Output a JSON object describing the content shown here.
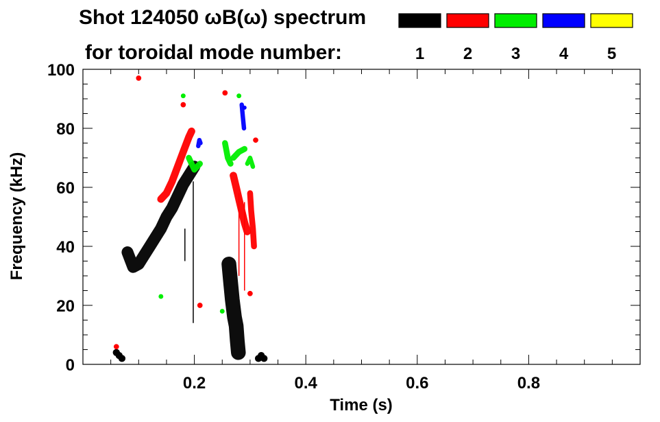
{
  "chart_data": {
    "type": "heatmap",
    "title_line1": "Shot 124050 ωB(ω) spectrum",
    "title_line2": "for toroidal mode number:",
    "xlabel": "Time (s)",
    "ylabel": "Frequency (kHz)",
    "xlim": [
      0,
      1.0
    ],
    "ylim": [
      0,
      100
    ],
    "x_ticks": [
      {
        "value": 0.2,
        "label": "0.2"
      },
      {
        "value": 0.4,
        "label": "0.4"
      },
      {
        "value": 0.6,
        "label": "0.6"
      },
      {
        "value": 0.8,
        "label": "0.8"
      }
    ],
    "y_ticks": [
      {
        "value": 0,
        "label": "0"
      },
      {
        "value": 20,
        "label": "20"
      },
      {
        "value": 40,
        "label": "40"
      },
      {
        "value": 60,
        "label": "60"
      },
      {
        "value": 80,
        "label": "80"
      },
      {
        "value": 100,
        "label": "100"
      }
    ],
    "legend_placement": "top-right",
    "modes": [
      {
        "label": "1",
        "color": "#000000"
      },
      {
        "label": "2",
        "color": "#ff0000"
      },
      {
        "label": "3",
        "color": "#00ee00"
      },
      {
        "label": "4",
        "color": "#0000ff"
      },
      {
        "label": "5",
        "color": "#ffff00"
      }
    ],
    "features": [
      {
        "mode": "1",
        "points": [
          [
            0.08,
            38
          ],
          [
            0.09,
            33
          ],
          [
            0.1,
            34
          ],
          [
            0.11,
            37
          ],
          [
            0.12,
            40
          ],
          [
            0.13,
            43
          ],
          [
            0.14,
            46
          ],
          [
            0.15,
            50
          ],
          [
            0.16,
            53
          ],
          [
            0.17,
            57
          ],
          [
            0.18,
            61
          ],
          [
            0.19,
            64
          ],
          [
            0.2,
            67
          ]
        ],
        "width_khz": 4
      },
      {
        "mode": "1",
        "points": [
          [
            0.262,
            34
          ],
          [
            0.265,
            28
          ],
          [
            0.268,
            22
          ],
          [
            0.272,
            16
          ],
          [
            0.275,
            13
          ],
          [
            0.277,
            8
          ],
          [
            0.279,
            4
          ]
        ],
        "width_khz": 5
      },
      {
        "mode": "2",
        "points": [
          [
            0.14,
            56
          ],
          [
            0.15,
            58
          ],
          [
            0.16,
            62
          ],
          [
            0.17,
            67
          ],
          [
            0.18,
            72
          ],
          [
            0.19,
            77
          ],
          [
            0.195,
            79
          ]
        ],
        "width_khz": 2.5
      },
      {
        "mode": "2",
        "points": [
          [
            0.27,
            64
          ],
          [
            0.275,
            60
          ],
          [
            0.28,
            56
          ],
          [
            0.285,
            52
          ],
          [
            0.29,
            48
          ],
          [
            0.295,
            45
          ]
        ],
        "width_khz": 2.5
      },
      {
        "mode": "2",
        "points": [
          [
            0.3,
            58
          ],
          [
            0.302,
            52
          ],
          [
            0.305,
            46
          ],
          [
            0.307,
            40
          ]
        ],
        "width_khz": 2
      },
      {
        "mode": "3",
        "points": [
          [
            0.19,
            70
          ],
          [
            0.195,
            68
          ],
          [
            0.2,
            66
          ],
          [
            0.205,
            67
          ],
          [
            0.21,
            68
          ]
        ],
        "width_khz": 2
      },
      {
        "mode": "3",
        "points": [
          [
            0.255,
            75
          ],
          [
            0.26,
            70
          ],
          [
            0.265,
            68
          ]
        ],
        "width_khz": 2
      },
      {
        "mode": "3",
        "points": [
          [
            0.27,
            70
          ],
          [
            0.28,
            72
          ],
          [
            0.29,
            73
          ]
        ],
        "width_khz": 2
      },
      {
        "mode": "3",
        "points": [
          [
            0.295,
            68
          ],
          [
            0.3,
            70
          ],
          [
            0.305,
            67
          ]
        ],
        "width_khz": 1.5
      },
      {
        "mode": "4",
        "points": [
          [
            0.207,
            74
          ],
          [
            0.209,
            76
          ],
          [
            0.211,
            75
          ]
        ],
        "width_khz": 1.5
      },
      {
        "mode": "4",
        "points": [
          [
            0.285,
            88
          ],
          [
            0.287,
            84
          ],
          [
            0.289,
            80
          ]
        ],
        "width_khz": 1.5
      }
    ],
    "blobs": [
      {
        "mode": "1",
        "points": [
          [
            0.06,
            4
          ],
          [
            0.065,
            3
          ],
          [
            0.07,
            2
          ],
          [
            0.315,
            2
          ],
          [
            0.32,
            3
          ],
          [
            0.325,
            2
          ]
        ],
        "radius_khz": 1.2
      },
      {
        "mode": "2",
        "points": [
          [
            0.06,
            6
          ],
          [
            0.1,
            97
          ],
          [
            0.18,
            88
          ],
          [
            0.21,
            20
          ],
          [
            0.3,
            24
          ],
          [
            0.255,
            92
          ],
          [
            0.31,
            76
          ]
        ],
        "radius_khz": 0.9
      },
      {
        "mode": "3",
        "points": [
          [
            0.18,
            91
          ],
          [
            0.25,
            18
          ],
          [
            0.28,
            91
          ],
          [
            0.14,
            23
          ]
        ],
        "radius_khz": 0.8
      },
      {
        "mode": "4",
        "points": [
          [
            0.29,
            87
          ]
        ],
        "radius_khz": 0.7
      }
    ],
    "vertical_streaks": [
      {
        "mode": "1",
        "x": 0.183,
        "from": 35,
        "to": 46
      },
      {
        "mode": "1",
        "x": 0.198,
        "from": 14,
        "to": 62
      },
      {
        "mode": "2",
        "x": 0.28,
        "from": 30,
        "to": 58
      },
      {
        "mode": "2",
        "x": 0.29,
        "from": 25,
        "to": 55
      }
    ]
  }
}
